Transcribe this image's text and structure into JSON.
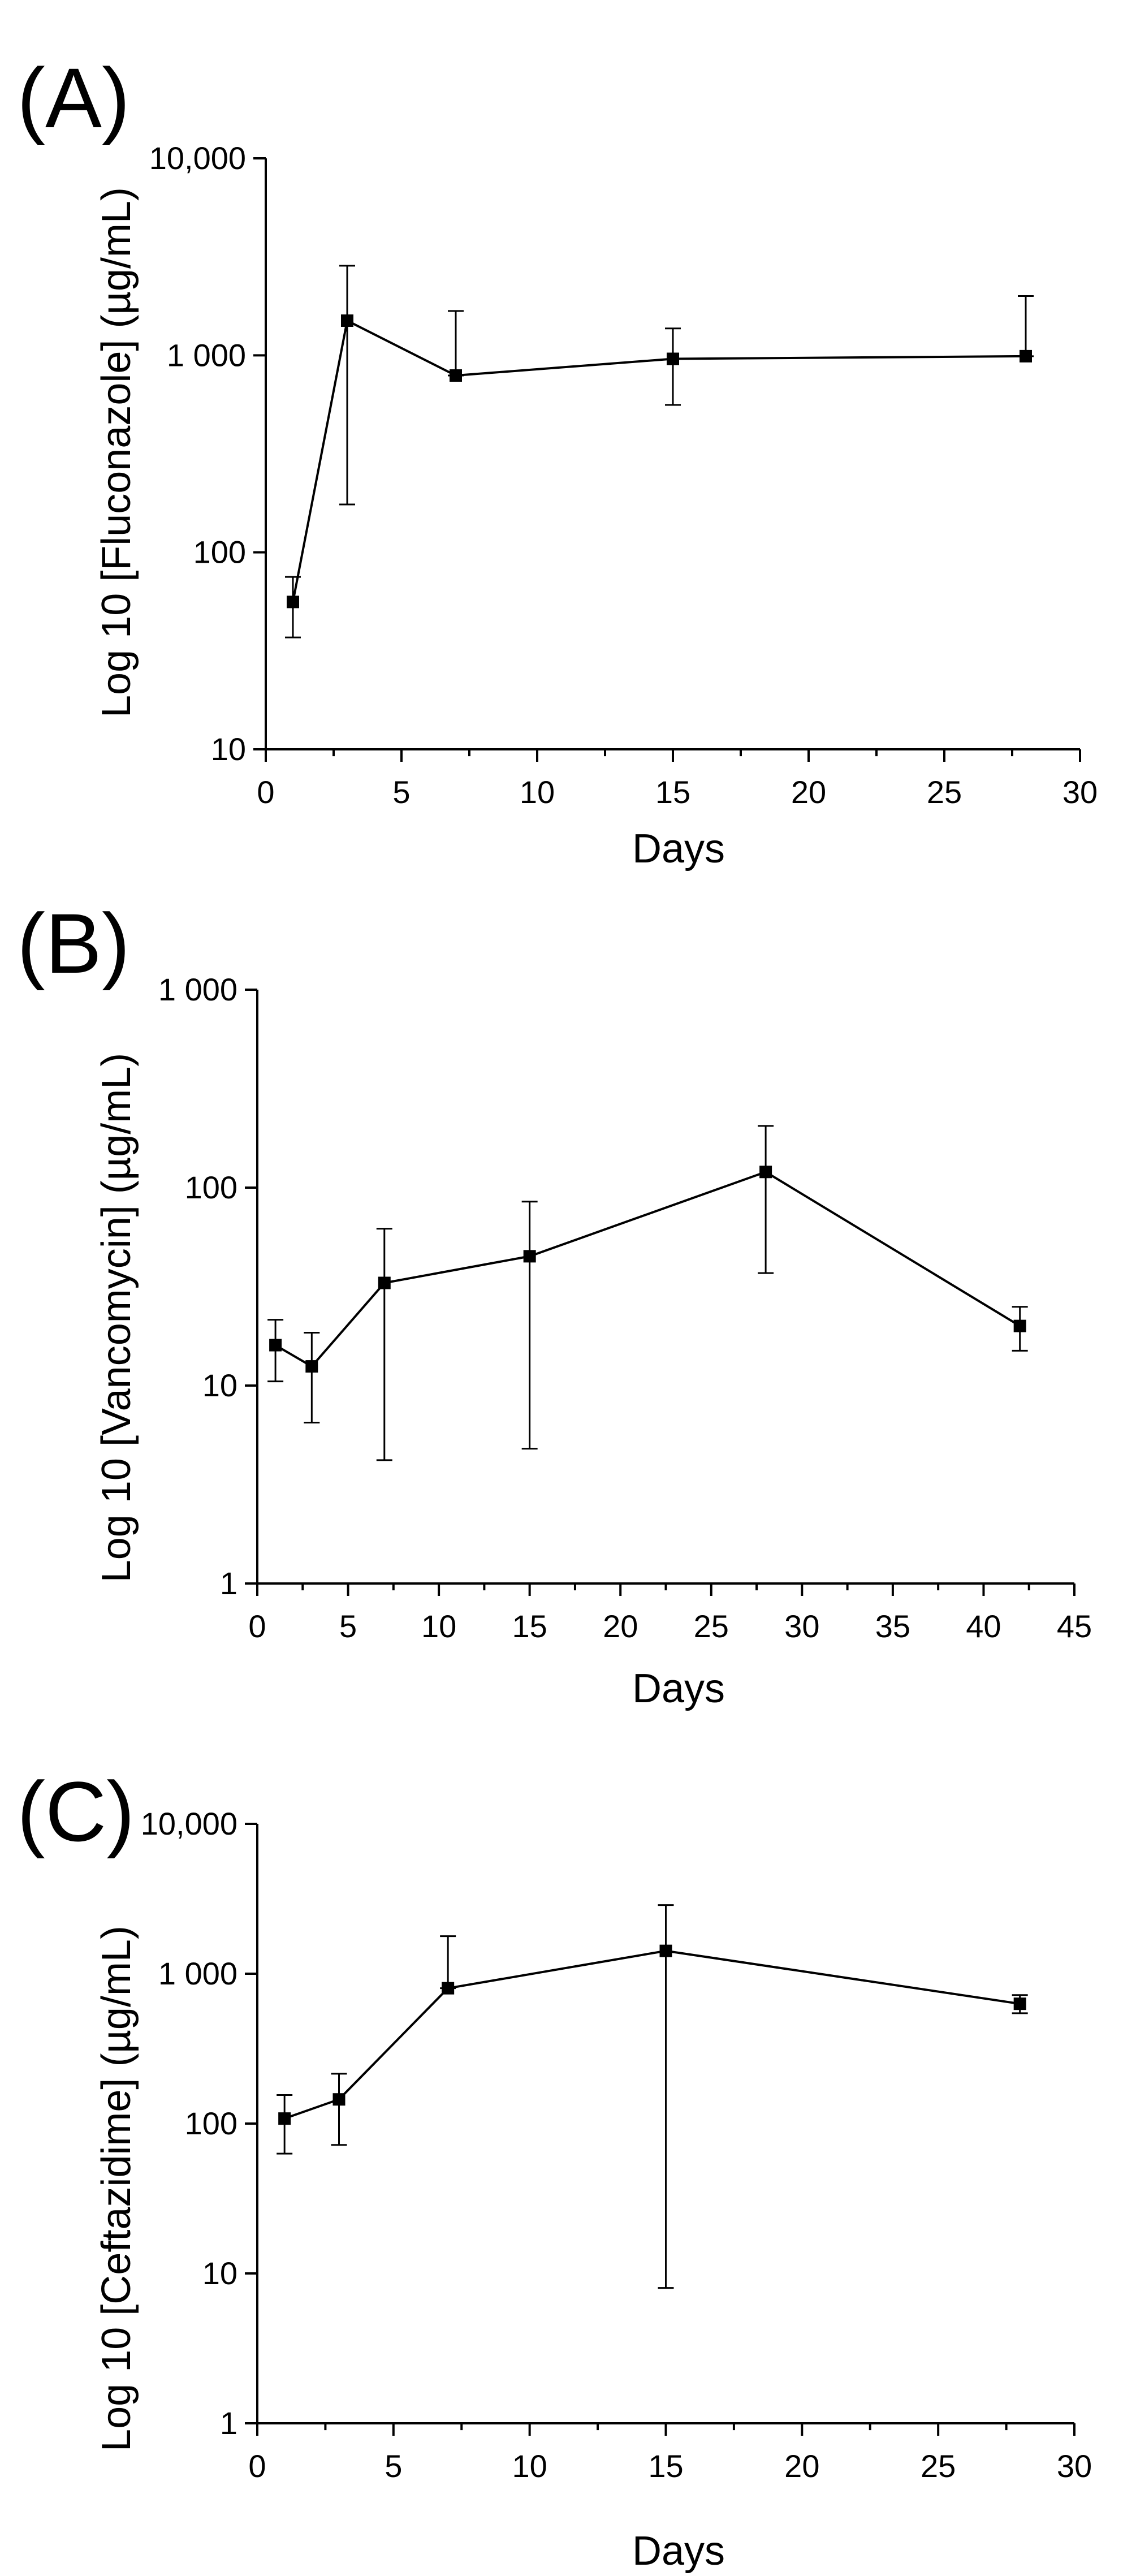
{
  "chart_data": [
    {
      "type": "line",
      "panel_label": "(A)",
      "title": "",
      "xlabel": "Days",
      "ylabel": "Log 10 [Fluconazole] (µg/mL)",
      "yscale": "log",
      "xlim": [
        0,
        30
      ],
      "ylim": [
        10,
        10000
      ],
      "xticks": [
        0,
        5,
        10,
        15,
        20,
        25,
        30
      ],
      "yticks": [
        10,
        100,
        1000,
        10000
      ],
      "ytick_labels": [
        "10",
        "100",
        "1 000",
        "10,000"
      ],
      "grid": false,
      "series": [
        {
          "name": "Fluconazole",
          "x": [
            1,
            3,
            7,
            15,
            28
          ],
          "y": [
            56,
            1500,
            790,
            960,
            990
          ],
          "err_low": [
            37,
            175,
            790,
            560,
            990
          ],
          "err_high": [
            75,
            2850,
            1680,
            1370,
            2000
          ]
        }
      ]
    },
    {
      "type": "line",
      "panel_label": "(B)",
      "title": "",
      "xlabel": "Days",
      "ylabel": "Log 10 [Vancomycin] (µg/mL)",
      "yscale": "log",
      "xlim": [
        0,
        45
      ],
      "ylim": [
        1,
        1000
      ],
      "xticks": [
        0,
        5,
        10,
        15,
        20,
        25,
        30,
        35,
        40,
        45
      ],
      "yticks": [
        1,
        10,
        100,
        1000
      ],
      "ytick_labels": [
        "1",
        "10",
        "100",
        "1 000"
      ],
      "grid": false,
      "series": [
        {
          "name": "Vancomycin",
          "x": [
            1,
            3,
            7,
            15,
            28,
            42
          ],
          "y": [
            16,
            12.5,
            33,
            45,
            120,
            20
          ],
          "err_low": [
            10.5,
            6.5,
            4.2,
            4.8,
            37,
            15
          ],
          "err_high": [
            21.5,
            18.5,
            62,
            85,
            205,
            25
          ]
        }
      ]
    },
    {
      "type": "line",
      "panel_label": "(C)",
      "title": "",
      "xlabel": "Days",
      "ylabel": "Log 10 [Ceftazidime] (µg/mL)",
      "yscale": "log",
      "xlim": [
        0,
        30
      ],
      "ylim": [
        1,
        10000
      ],
      "xticks": [
        0,
        5,
        10,
        15,
        20,
        25,
        30
      ],
      "yticks": [
        1,
        10,
        100,
        1000,
        10000
      ],
      "ytick_labels": [
        "1",
        "10",
        "100",
        "1 000",
        "10,000"
      ],
      "grid": false,
      "series": [
        {
          "name": "Ceftazidime",
          "x": [
            1,
            3,
            7,
            15,
            28
          ],
          "y": [
            108,
            145,
            800,
            1420,
            630
          ],
          "err_low": [
            63,
            72,
            800,
            8,
            545
          ],
          "err_high": [
            155,
            215,
            1780,
            2870,
            720
          ]
        }
      ]
    }
  ]
}
